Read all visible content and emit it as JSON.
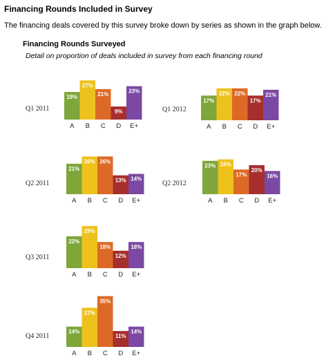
{
  "page": {
    "title": "Financing Rounds Included in Survey",
    "intro": "The financing deals covered by this survey broke down by series as shown in the graph below."
  },
  "figure": {
    "title": "Financing Rounds Surveyed",
    "subtitle": "Detail on proportion of deals included in survey from each financing round"
  },
  "colors": {
    "A": "#7ea63a",
    "B": "#edc21d",
    "C": "#dc6a26",
    "D": "#a62e2c",
    "E+": "#7b49a3"
  },
  "chart_data": [
    {
      "type": "bar",
      "label": "Q1 2011",
      "categories": [
        "A",
        "B",
        "C",
        "D",
        "E+"
      ],
      "values": [
        19,
        27,
        21,
        9,
        23
      ],
      "value_labels": [
        "19%",
        "27%",
        "21%",
        "9%",
        "23%"
      ]
    },
    {
      "type": "bar",
      "label": "Q1 2012",
      "categories": [
        "A",
        "B",
        "C",
        "D",
        "E+"
      ],
      "values": [
        17,
        22,
        22,
        17,
        21
      ],
      "value_labels": [
        "17%",
        "22%",
        "22%",
        "17%",
        "21%"
      ]
    },
    {
      "type": "bar",
      "label": "Q2 2011",
      "categories": [
        "A",
        "B",
        "C",
        "D",
        "E+"
      ],
      "values": [
        21,
        26,
        26,
        13,
        14
      ],
      "value_labels": [
        "21%",
        "26%",
        "26%",
        "13%",
        "14%"
      ]
    },
    {
      "type": "bar",
      "label": "Q2 2012",
      "categories": [
        "A",
        "B",
        "C",
        "D",
        "E+"
      ],
      "values": [
        23,
        24,
        17,
        20,
        16
      ],
      "value_labels": [
        "23%",
        "24%",
        "17%",
        "20%",
        "16%"
      ]
    },
    {
      "type": "bar",
      "label": "Q3 2011",
      "categories": [
        "A",
        "B",
        "C",
        "D",
        "E+"
      ],
      "values": [
        22,
        29,
        18,
        12,
        18
      ],
      "value_labels": [
        "22%",
        "29%",
        "18%",
        "12%",
        "18%"
      ]
    },
    {
      "type": "bar",
      "label": "Q4 2011",
      "categories": [
        "A",
        "B",
        "C",
        "D",
        "E+"
      ],
      "values": [
        14,
        27,
        35,
        11,
        14
      ],
      "value_labels": [
        "14%",
        "27%",
        "35%",
        "11%",
        "14%"
      ]
    }
  ]
}
